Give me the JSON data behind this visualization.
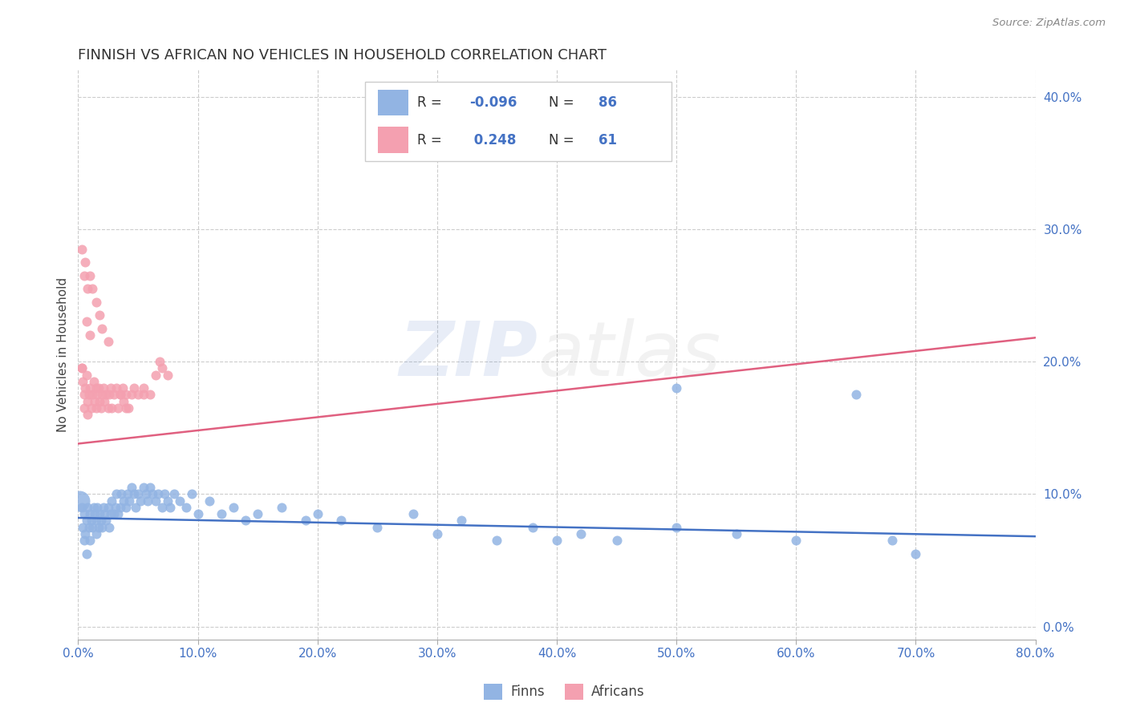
{
  "title": "FINNISH VS AFRICAN NO VEHICLES IN HOUSEHOLD CORRELATION CHART",
  "source_text": "Source: ZipAtlas.com",
  "ylabel": "No Vehicles in Household",
  "xlim": [
    0.0,
    0.8
  ],
  "ylim": [
    -0.01,
    0.42
  ],
  "xticks": [
    0.0,
    0.1,
    0.2,
    0.3,
    0.4,
    0.5,
    0.6,
    0.7,
    0.8
  ],
  "xticklabels": [
    "0.0%",
    "10.0%",
    "20.0%",
    "30.0%",
    "40.0%",
    "50.0%",
    "60.0%",
    "70.0%",
    "80.0%"
  ],
  "yticks": [
    0.0,
    0.1,
    0.2,
    0.3,
    0.4
  ],
  "yticklabels": [
    "0.0%",
    "10.0%",
    "20.0%",
    "30.0%",
    "40.0%"
  ],
  "finn_color": "#92b4e3",
  "african_color": "#f4a0b0",
  "finn_line_color": "#4472c4",
  "african_line_color": "#e06080",
  "finn_R": -0.096,
  "finn_N": 86,
  "african_R": 0.248,
  "african_N": 61,
  "watermark_zip_color": "#4472c4",
  "watermark_atlas_color": "#aaaaaa",
  "title_fontsize": 13,
  "axis_label_fontsize": 11,
  "tick_fontsize": 11,
  "grid_color": "#cccccc",
  "grid_linestyle": "--",
  "background_color": "#ffffff",
  "finn_line_x": [
    0.0,
    0.8
  ],
  "finn_line_y": [
    0.082,
    0.068
  ],
  "african_line_x": [
    0.0,
    0.8
  ],
  "african_line_y": [
    0.138,
    0.218
  ],
  "finn_scatter": [
    [
      0.003,
      0.09
    ],
    [
      0.004,
      0.075
    ],
    [
      0.005,
      0.065
    ],
    [
      0.005,
      0.085
    ],
    [
      0.006,
      0.07
    ],
    [
      0.007,
      0.08
    ],
    [
      0.007,
      0.055
    ],
    [
      0.008,
      0.09
    ],
    [
      0.009,
      0.075
    ],
    [
      0.01,
      0.085
    ],
    [
      0.01,
      0.065
    ],
    [
      0.011,
      0.08
    ],
    [
      0.012,
      0.075
    ],
    [
      0.013,
      0.09
    ],
    [
      0.014,
      0.085
    ],
    [
      0.015,
      0.07
    ],
    [
      0.015,
      0.08
    ],
    [
      0.016,
      0.09
    ],
    [
      0.017,
      0.075
    ],
    [
      0.018,
      0.085
    ],
    [
      0.019,
      0.08
    ],
    [
      0.02,
      0.075
    ],
    [
      0.021,
      0.09
    ],
    [
      0.022,
      0.085
    ],
    [
      0.023,
      0.08
    ],
    [
      0.025,
      0.09
    ],
    [
      0.026,
      0.075
    ],
    [
      0.027,
      0.085
    ],
    [
      0.028,
      0.095
    ],
    [
      0.03,
      0.085
    ],
    [
      0.031,
      0.09
    ],
    [
      0.032,
      0.1
    ],
    [
      0.033,
      0.085
    ],
    [
      0.035,
      0.09
    ],
    [
      0.036,
      0.1
    ],
    [
      0.038,
      0.095
    ],
    [
      0.04,
      0.09
    ],
    [
      0.041,
      0.1
    ],
    [
      0.043,
      0.095
    ],
    [
      0.045,
      0.105
    ],
    [
      0.047,
      0.1
    ],
    [
      0.048,
      0.09
    ],
    [
      0.05,
      0.1
    ],
    [
      0.052,
      0.095
    ],
    [
      0.055,
      0.105
    ],
    [
      0.057,
      0.1
    ],
    [
      0.058,
      0.095
    ],
    [
      0.06,
      0.105
    ],
    [
      0.062,
      0.1
    ],
    [
      0.065,
      0.095
    ],
    [
      0.067,
      0.1
    ],
    [
      0.07,
      0.09
    ],
    [
      0.072,
      0.1
    ],
    [
      0.075,
      0.095
    ],
    [
      0.077,
      0.09
    ],
    [
      0.08,
      0.1
    ],
    [
      0.085,
      0.095
    ],
    [
      0.09,
      0.09
    ],
    [
      0.095,
      0.1
    ],
    [
      0.1,
      0.085
    ],
    [
      0.11,
      0.095
    ],
    [
      0.12,
      0.085
    ],
    [
      0.13,
      0.09
    ],
    [
      0.14,
      0.08
    ],
    [
      0.15,
      0.085
    ],
    [
      0.17,
      0.09
    ],
    [
      0.19,
      0.08
    ],
    [
      0.2,
      0.085
    ],
    [
      0.22,
      0.08
    ],
    [
      0.25,
      0.075
    ],
    [
      0.28,
      0.085
    ],
    [
      0.3,
      0.07
    ],
    [
      0.32,
      0.08
    ],
    [
      0.35,
      0.065
    ],
    [
      0.38,
      0.075
    ],
    [
      0.4,
      0.065
    ],
    [
      0.42,
      0.07
    ],
    [
      0.45,
      0.065
    ],
    [
      0.5,
      0.18
    ],
    [
      0.5,
      0.075
    ],
    [
      0.55,
      0.07
    ],
    [
      0.6,
      0.065
    ],
    [
      0.65,
      0.175
    ],
    [
      0.68,
      0.065
    ],
    [
      0.7,
      0.055
    ],
    [
      0.001,
      0.095
    ]
  ],
  "african_scatter": [
    [
      0.003,
      0.195
    ],
    [
      0.004,
      0.185
    ],
    [
      0.005,
      0.175
    ],
    [
      0.005,
      0.165
    ],
    [
      0.006,
      0.18
    ],
    [
      0.007,
      0.19
    ],
    [
      0.008,
      0.17
    ],
    [
      0.008,
      0.16
    ],
    [
      0.009,
      0.175
    ],
    [
      0.01,
      0.18
    ],
    [
      0.011,
      0.165
    ],
    [
      0.012,
      0.175
    ],
    [
      0.013,
      0.185
    ],
    [
      0.014,
      0.17
    ],
    [
      0.015,
      0.18
    ],
    [
      0.015,
      0.165
    ],
    [
      0.016,
      0.175
    ],
    [
      0.017,
      0.18
    ],
    [
      0.018,
      0.17
    ],
    [
      0.019,
      0.165
    ],
    [
      0.02,
      0.175
    ],
    [
      0.021,
      0.18
    ],
    [
      0.022,
      0.17
    ],
    [
      0.023,
      0.175
    ],
    [
      0.025,
      0.165
    ],
    [
      0.026,
      0.175
    ],
    [
      0.027,
      0.18
    ],
    [
      0.028,
      0.165
    ],
    [
      0.03,
      0.175
    ],
    [
      0.032,
      0.18
    ],
    [
      0.033,
      0.165
    ],
    [
      0.035,
      0.175
    ],
    [
      0.037,
      0.18
    ],
    [
      0.038,
      0.17
    ],
    [
      0.04,
      0.175
    ],
    [
      0.042,
      0.165
    ],
    [
      0.045,
      0.175
    ],
    [
      0.047,
      0.18
    ],
    [
      0.05,
      0.175
    ],
    [
      0.055,
      0.18
    ],
    [
      0.003,
      0.285
    ],
    [
      0.005,
      0.265
    ],
    [
      0.006,
      0.275
    ],
    [
      0.008,
      0.255
    ],
    [
      0.01,
      0.265
    ],
    [
      0.012,
      0.255
    ],
    [
      0.015,
      0.245
    ],
    [
      0.018,
      0.235
    ],
    [
      0.02,
      0.225
    ],
    [
      0.025,
      0.215
    ],
    [
      0.003,
      0.195
    ],
    [
      0.007,
      0.23
    ],
    [
      0.01,
      0.22
    ],
    [
      0.065,
      0.19
    ],
    [
      0.068,
      0.2
    ],
    [
      0.07,
      0.195
    ],
    [
      0.055,
      0.175
    ],
    [
      0.06,
      0.175
    ],
    [
      0.04,
      0.165
    ],
    [
      0.035,
      0.175
    ],
    [
      0.075,
      0.19
    ]
  ]
}
